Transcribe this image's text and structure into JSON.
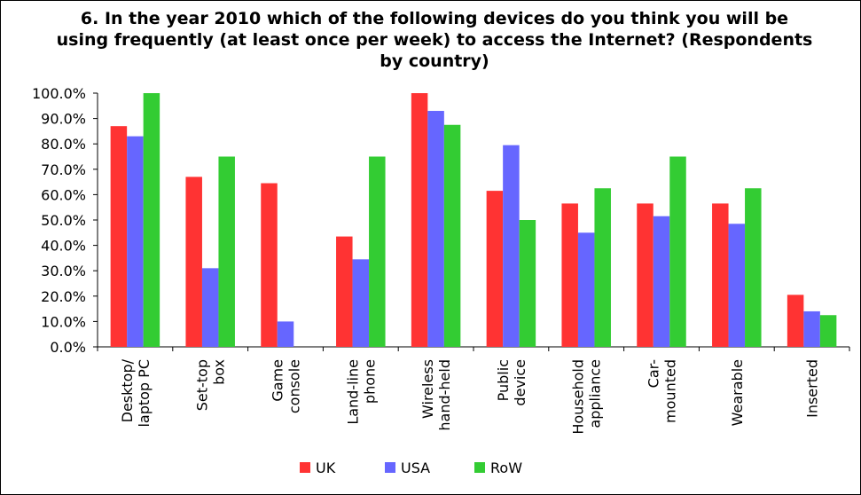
{
  "chart_data": {
    "type": "bar",
    "title": "6. In the year 2010 which of the following devices do you think you will be using frequently (at least once per week) to access the Internet? (Respondents by country)",
    "categories": [
      [
        "Desktop/",
        "laptop PC"
      ],
      [
        "Set-top",
        "box"
      ],
      [
        "Game",
        "console"
      ],
      [
        "Land-line",
        "phone"
      ],
      [
        "Wireless",
        "hand-held"
      ],
      [
        "Public",
        "device"
      ],
      [
        "Household",
        "appliance"
      ],
      [
        "Car-",
        "mounted"
      ],
      [
        "Wearable"
      ],
      [
        "Inserted"
      ]
    ],
    "series": [
      {
        "name": "UK",
        "color": "#ff3333",
        "values": [
          87.0,
          67.0,
          64.5,
          43.5,
          100.0,
          61.5,
          56.5,
          56.5,
          56.5,
          20.5
        ]
      },
      {
        "name": "USA",
        "color": "#6666ff",
        "values": [
          83.0,
          31.0,
          10.0,
          34.5,
          93.0,
          79.5,
          45.0,
          51.5,
          48.5,
          14.0
        ]
      },
      {
        "name": "RoW",
        "color": "#33cc33",
        "values": [
          100.0,
          75.0,
          0.0,
          75.0,
          87.5,
          50.0,
          62.5,
          75.0,
          62.5,
          12.5
        ]
      }
    ],
    "y_ticks": [
      "0.0%",
      "10.0%",
      "20.0%",
      "30.0%",
      "40.0%",
      "50.0%",
      "60.0%",
      "70.0%",
      "80.0%",
      "90.0%",
      "100.0%"
    ],
    "ylim": [
      0,
      100
    ],
    "grid": false,
    "legend_position": "bottom"
  }
}
